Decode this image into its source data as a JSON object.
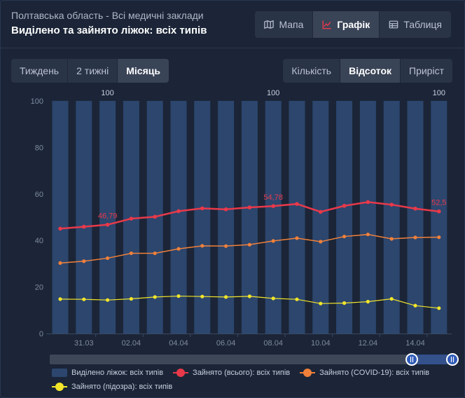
{
  "header": {
    "subtitle": "Полтавська область - Всі медичні заклади",
    "title": "Виділено та зайнято ліжок: всіх типів"
  },
  "view_tabs": [
    {
      "label": "Мапа",
      "icon": "map-icon",
      "active": false
    },
    {
      "label": "Графік",
      "icon": "line-chart-icon",
      "active": true
    },
    {
      "label": "Таблиця",
      "icon": "table-icon",
      "active": false
    }
  ],
  "period_tabs": [
    {
      "label": "Тиждень",
      "active": false
    },
    {
      "label": "2 тижні",
      "active": false
    },
    {
      "label": "Місяць",
      "active": true
    }
  ],
  "mode_tabs": [
    {
      "label": "Кількість",
      "active": false
    },
    {
      "label": "Відсоток",
      "active": true
    },
    {
      "label": "Приріст",
      "active": false
    }
  ],
  "colors": {
    "background": "#1b2537",
    "bar": "#2c466e",
    "total": "#e8394a",
    "covid": "#f0803a",
    "suspected": "#f2e52a",
    "axis_text": "#7f8ba0",
    "scroll_thumb": "#2e5ab8"
  },
  "chart_data": {
    "type": "bar+line",
    "ylim": [
      0,
      100
    ],
    "yticks": [
      0,
      20,
      40,
      60,
      80,
      100
    ],
    "x": [
      "30.03",
      "31.03",
      "01.04",
      "02.04",
      "03.04",
      "04.04",
      "05.04",
      "06.04",
      "07.04",
      "08.04",
      "09.04",
      "10.04",
      "11.04",
      "12.04",
      "13.04",
      "14.04",
      "15.04"
    ],
    "xtick_labels": [
      "31.03",
      "02.04",
      "04.04",
      "06.04",
      "08.04",
      "10.04",
      "12.04",
      "14.04"
    ],
    "bar_series": {
      "name": "Виділено ліжок: всіх типів",
      "values": [
        100,
        100,
        100,
        100,
        100,
        100,
        100,
        100,
        100,
        100,
        100,
        100,
        100,
        100,
        100,
        100,
        100
      ],
      "data_labels": [
        {
          "index": 2,
          "text": "100"
        },
        {
          "index": 9,
          "text": "100"
        },
        {
          "index": 16,
          "text": "100"
        }
      ]
    },
    "series": [
      {
        "name": "Зайнято (всього): всіх типів",
        "color_key": "total",
        "values": [
          45.1,
          45.9,
          46.79,
          49.4,
          50.2,
          52.6,
          53.8,
          53.4,
          54.2,
          54.78,
          55.7,
          52.3,
          54.9,
          56.5,
          55.4,
          53.7,
          52.5
        ],
        "data_labels": [
          {
            "index": 2,
            "text": "46,79"
          },
          {
            "index": 9,
            "text": "54,78"
          },
          {
            "index": 16,
            "text": "52,5"
          }
        ]
      },
      {
        "name": "Зайнято (COVID-19): всіх типів",
        "color_key": "covid",
        "values": [
          30.3,
          31.1,
          32.4,
          34.5,
          34.5,
          36.4,
          37.7,
          37.6,
          38.2,
          39.8,
          41.0,
          39.5,
          41.7,
          42.6,
          40.7,
          41.3,
          41.4
        ]
      },
      {
        "name": "Зайнято (підозра): всіх типів",
        "color_key": "suspected",
        "values": [
          14.8,
          14.7,
          14.4,
          14.9,
          15.7,
          16.1,
          15.9,
          15.7,
          16.0,
          15.1,
          14.7,
          12.9,
          13.1,
          13.7,
          14.9,
          12.0,
          10.9
        ]
      }
    ],
    "legend_position": "bottom",
    "grid": false
  }
}
